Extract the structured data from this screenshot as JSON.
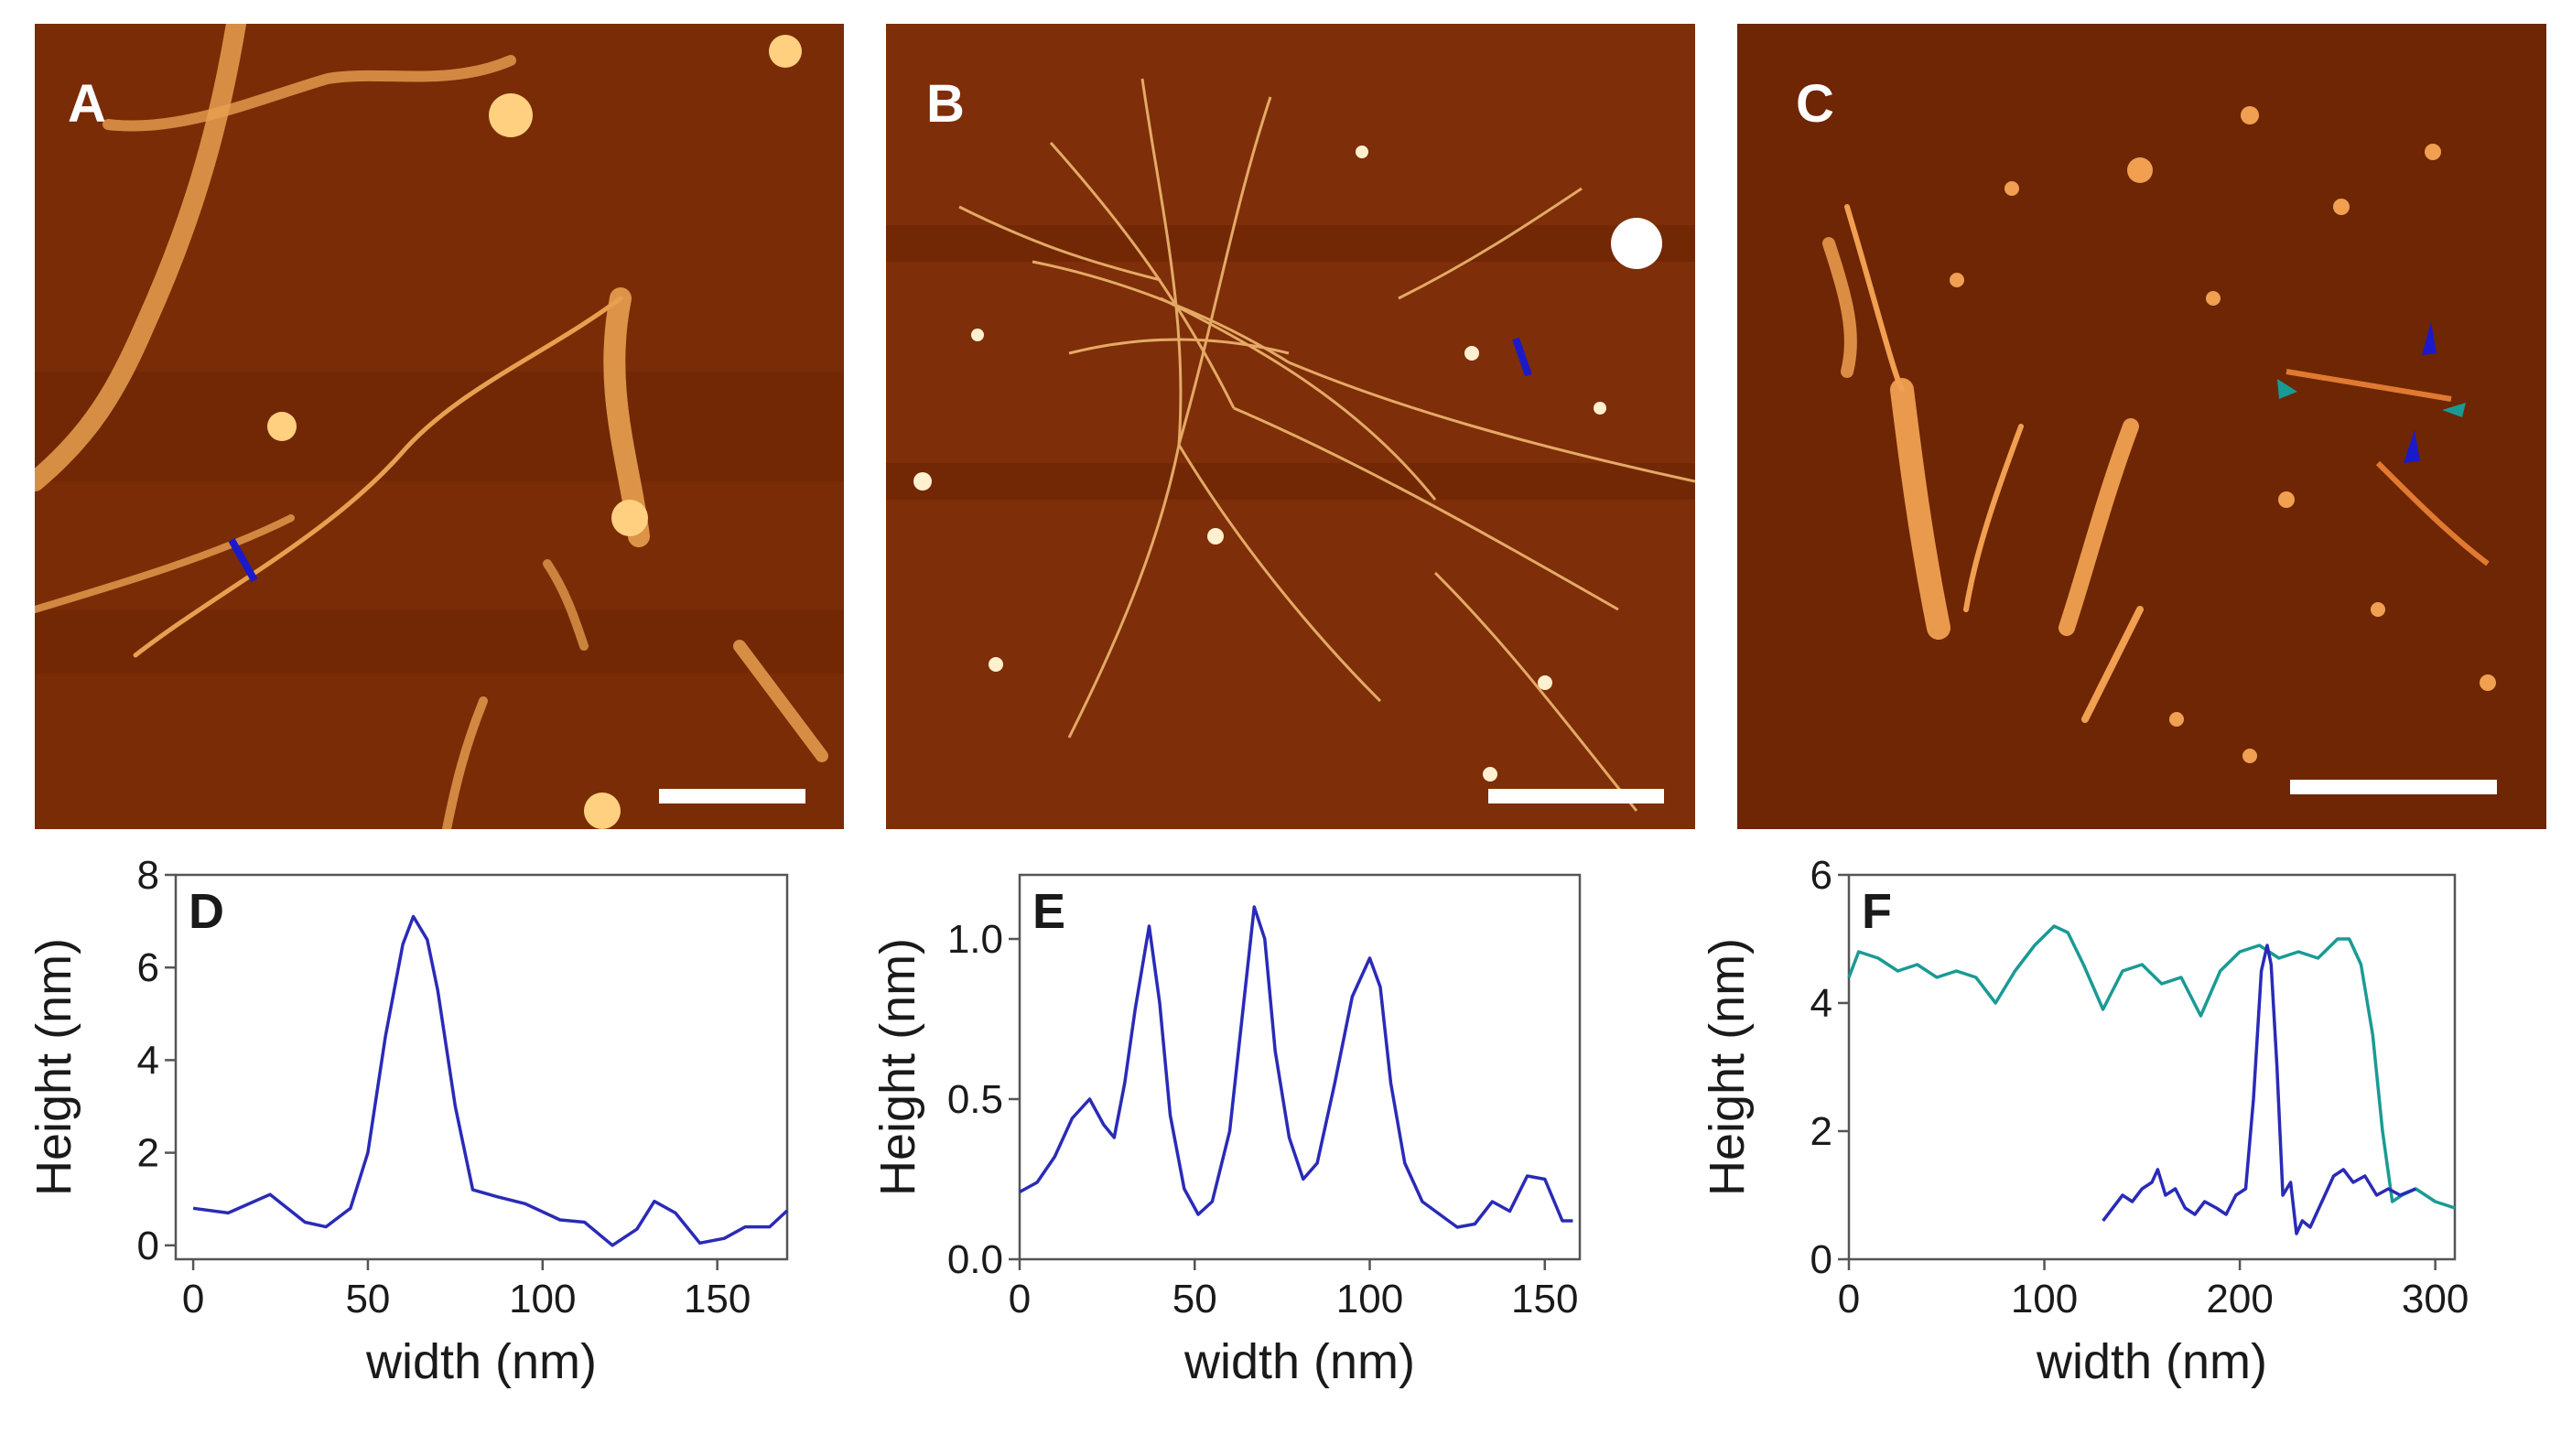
{
  "figure": {
    "panels": [
      {
        "id": "A",
        "label": "A"
      },
      {
        "id": "B",
        "label": "B"
      },
      {
        "id": "C",
        "label": "C"
      }
    ],
    "colors": {
      "afm_background": "#7a2c06",
      "afm_fibril": "#f0b060",
      "afm_highlight": "#ffe8b0",
      "profile_marker_blue": "#1a1ac8",
      "profile_marker_teal": "#1a9a94",
      "scale_bar": "#ffffff"
    }
  },
  "chart_data": [
    {
      "panel": "D",
      "type": "line",
      "label": "D",
      "xlabel": "width (nm)",
      "ylabel": "Height (nm)",
      "xlim": [
        -5,
        170
      ],
      "ylim": [
        -0.3,
        8
      ],
      "xticks": [
        0,
        50,
        100,
        150
      ],
      "yticks": [
        0,
        2,
        4,
        6,
        8
      ],
      "ytick_labels": [
        "0",
        "2",
        "4",
        "6",
        "8"
      ],
      "series": [
        {
          "color": "#2a2ab8",
          "x": [
            0,
            10,
            22,
            32,
            38,
            45,
            50,
            55,
            60,
            63,
            67,
            70,
            75,
            80,
            87,
            95,
            105,
            112,
            120,
            127,
            132,
            138,
            145,
            152,
            158,
            165,
            170
          ],
          "y": [
            0.8,
            0.7,
            1.1,
            0.5,
            0.4,
            0.8,
            2.0,
            4.5,
            6.5,
            7.1,
            6.6,
            5.5,
            3.0,
            1.2,
            1.05,
            0.9,
            0.55,
            0.5,
            0.0,
            0.35,
            0.95,
            0.7,
            0.05,
            0.15,
            0.4,
            0.4,
            0.75
          ]
        }
      ]
    },
    {
      "panel": "E",
      "type": "line",
      "label": "E",
      "xlabel": "width (nm)",
      "ylabel": "Height (nm)",
      "xlim": [
        0,
        160
      ],
      "ylim": [
        0,
        1.2
      ],
      "xticks": [
        0,
        50,
        100,
        150
      ],
      "yticks": [
        0,
        0.5,
        1.0
      ],
      "ytick_labels": [
        "0.0",
        "0.5",
        "1.0"
      ],
      "series": [
        {
          "color": "#2a2ab8",
          "x": [
            0,
            5,
            10,
            15,
            20,
            24,
            27,
            30,
            33,
            37,
            40,
            43,
            47,
            51,
            55,
            60,
            64,
            67,
            70,
            73,
            77,
            81,
            85,
            90,
            95,
            100,
            103,
            106,
            110,
            115,
            120,
            125,
            130,
            135,
            140,
            145,
            150,
            155,
            158
          ],
          "y": [
            0.21,
            0.24,
            0.32,
            0.44,
            0.5,
            0.42,
            0.38,
            0.55,
            0.78,
            1.04,
            0.8,
            0.45,
            0.22,
            0.14,
            0.18,
            0.4,
            0.8,
            1.1,
            1.0,
            0.65,
            0.38,
            0.25,
            0.3,
            0.55,
            0.82,
            0.94,
            0.85,
            0.55,
            0.3,
            0.18,
            0.14,
            0.1,
            0.11,
            0.18,
            0.15,
            0.26,
            0.25,
            0.12,
            0.12
          ]
        }
      ]
    },
    {
      "panel": "F",
      "type": "line",
      "label": "F",
      "xlabel": "width (nm)",
      "ylabel": "Height (nm)",
      "xlim": [
        0,
        310
      ],
      "ylim": [
        0,
        6
      ],
      "xticks": [
        0,
        100,
        200,
        300
      ],
      "yticks": [
        0,
        2,
        4,
        6
      ],
      "ytick_labels": [
        "0",
        "2",
        "4",
        "6"
      ],
      "series": [
        {
          "color": "#1a9a94",
          "x": [
            0,
            5,
            15,
            25,
            35,
            45,
            55,
            65,
            75,
            85,
            95,
            105,
            112,
            120,
            130,
            140,
            150,
            160,
            170,
            180,
            190,
            200,
            210,
            220,
            230,
            240,
            250,
            256,
            262,
            268,
            273,
            278,
            283,
            290,
            300,
            310
          ],
          "y": [
            4.4,
            4.8,
            4.7,
            4.5,
            4.6,
            4.4,
            4.5,
            4.4,
            4.0,
            4.5,
            4.9,
            5.2,
            5.1,
            4.6,
            3.9,
            4.5,
            4.6,
            4.3,
            4.4,
            3.8,
            4.5,
            4.8,
            4.9,
            4.7,
            4.8,
            4.7,
            5.0,
            5.0,
            4.6,
            3.5,
            2.0,
            0.9,
            1.0,
            1.1,
            0.9,
            0.8
          ]
        },
        {
          "color": "#2a2ab8",
          "x": [
            130,
            135,
            140,
            145,
            150,
            155,
            158,
            162,
            167,
            172,
            177,
            182,
            188,
            193,
            198,
            203,
            207,
            211,
            214,
            216,
            219,
            222,
            226,
            229,
            232,
            236,
            242,
            248,
            253,
            258,
            264,
            270,
            276,
            282,
            290
          ],
          "y": [
            0.6,
            0.8,
            1.0,
            0.9,
            1.1,
            1.2,
            1.4,
            1.0,
            1.1,
            0.8,
            0.7,
            0.9,
            0.8,
            0.7,
            1.0,
            1.1,
            2.5,
            4.5,
            4.9,
            4.6,
            3.0,
            1.0,
            1.2,
            0.4,
            0.6,
            0.5,
            0.9,
            1.3,
            1.4,
            1.2,
            1.3,
            1.0,
            1.1,
            1.0,
            1.1
          ]
        }
      ]
    }
  ]
}
